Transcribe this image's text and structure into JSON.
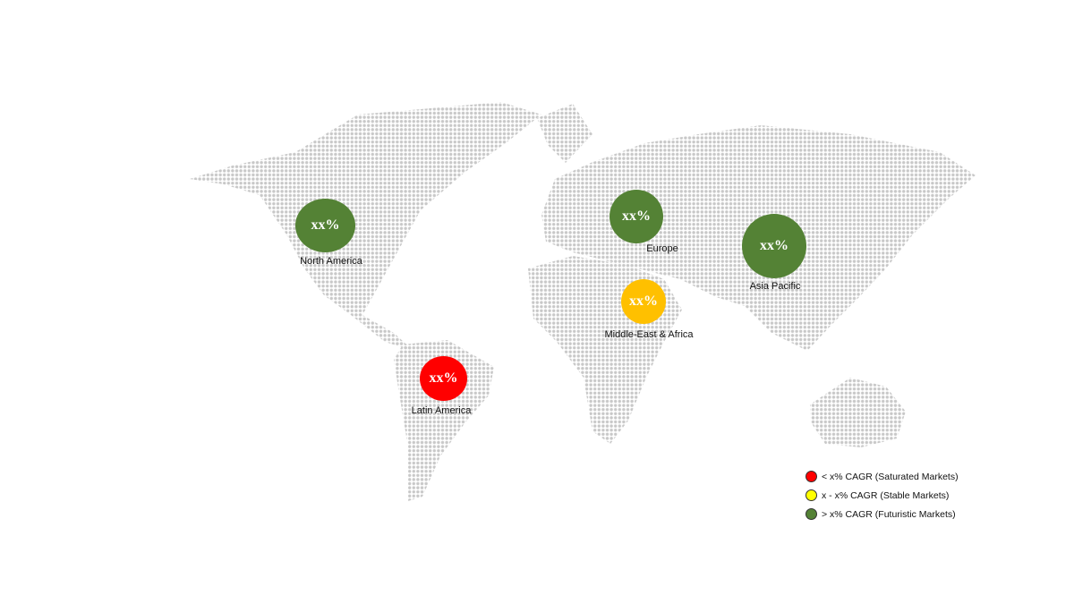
{
  "regions": [
    {
      "name": "North America",
      "value": "xx%",
      "color": "#548235",
      "tier": "futuristic"
    },
    {
      "name": "Europe",
      "value": "xx%",
      "color": "#548235",
      "tier": "futuristic"
    },
    {
      "name": "Asia Pacific",
      "value": "xx%",
      "color": "#548235",
      "tier": "futuristic"
    },
    {
      "name": "Middle-East & Africa",
      "value": "xx%",
      "color": "#ffc000",
      "tier": "stable"
    },
    {
      "name": "Latin America",
      "value": "xx%",
      "color": "#ff0000",
      "tier": "saturated"
    }
  ],
  "legend": [
    {
      "label": "< x% CAGR (Saturated Markets)",
      "color": "#ff0000"
    },
    {
      "label": "x - x% CAGR (Stable Markets)",
      "color": "#ffff00"
    },
    {
      "label": "> x% CAGR (Futuristic Markets)",
      "color": "#548235"
    }
  ],
  "map_dot_color": "#c8c8c8"
}
